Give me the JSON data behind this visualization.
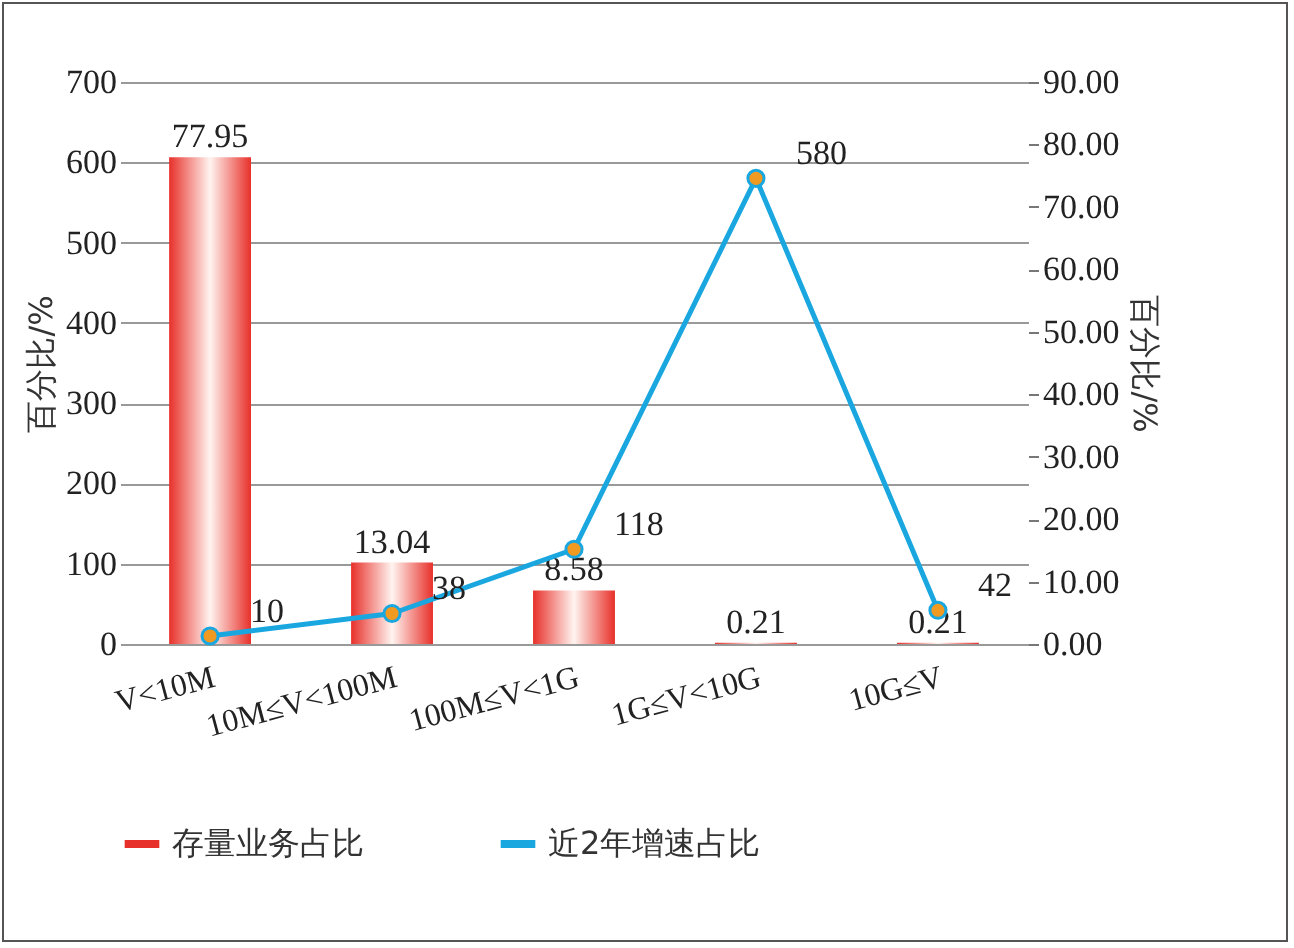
{
  "chart_data": {
    "type": "bar",
    "categories": [
      "V<10M",
      "10M≤V<100M",
      "100M≤V<1G",
      "1G≤V<10G",
      "10G≤V"
    ],
    "series": [
      {
        "name": "存量业务占比",
        "axis": "y2",
        "color": "#e8302a",
        "values": [
          77.95,
          13.04,
          8.58,
          0.21,
          0.21
        ]
      },
      {
        "name": "近2年增速占比",
        "type": "line",
        "axis": "y",
        "color": "#1aa7e0",
        "values": [
          10,
          38,
          118,
          580,
          42
        ]
      }
    ],
    "ylabel": "百分比/%",
    "y2label": "百分比/%",
    "ylim": [
      0,
      700
    ],
    "yticks": [
      0,
      100,
      200,
      300,
      400,
      500,
      600,
      700
    ],
    "y2lim": [
      0,
      90
    ],
    "y2ticks": [
      {
        "value": 0,
        "label": "0.00"
      },
      {
        "value": 10,
        "label": "10.00"
      },
      {
        "value": 20,
        "label": "20.00"
      },
      {
        "value": 30,
        "label": "30.00"
      },
      {
        "value": 40,
        "label": "40.00"
      },
      {
        "value": 50,
        "label": "50.00"
      },
      {
        "value": 60,
        "label": "60.00"
      },
      {
        "value": 70,
        "label": "70.00"
      },
      {
        "value": 80,
        "label": "80.00"
      },
      {
        "value": 90,
        "label": "90.00"
      }
    ],
    "grid": true,
    "legend": "bottom",
    "marker": "circle",
    "data_labels": true
  }
}
